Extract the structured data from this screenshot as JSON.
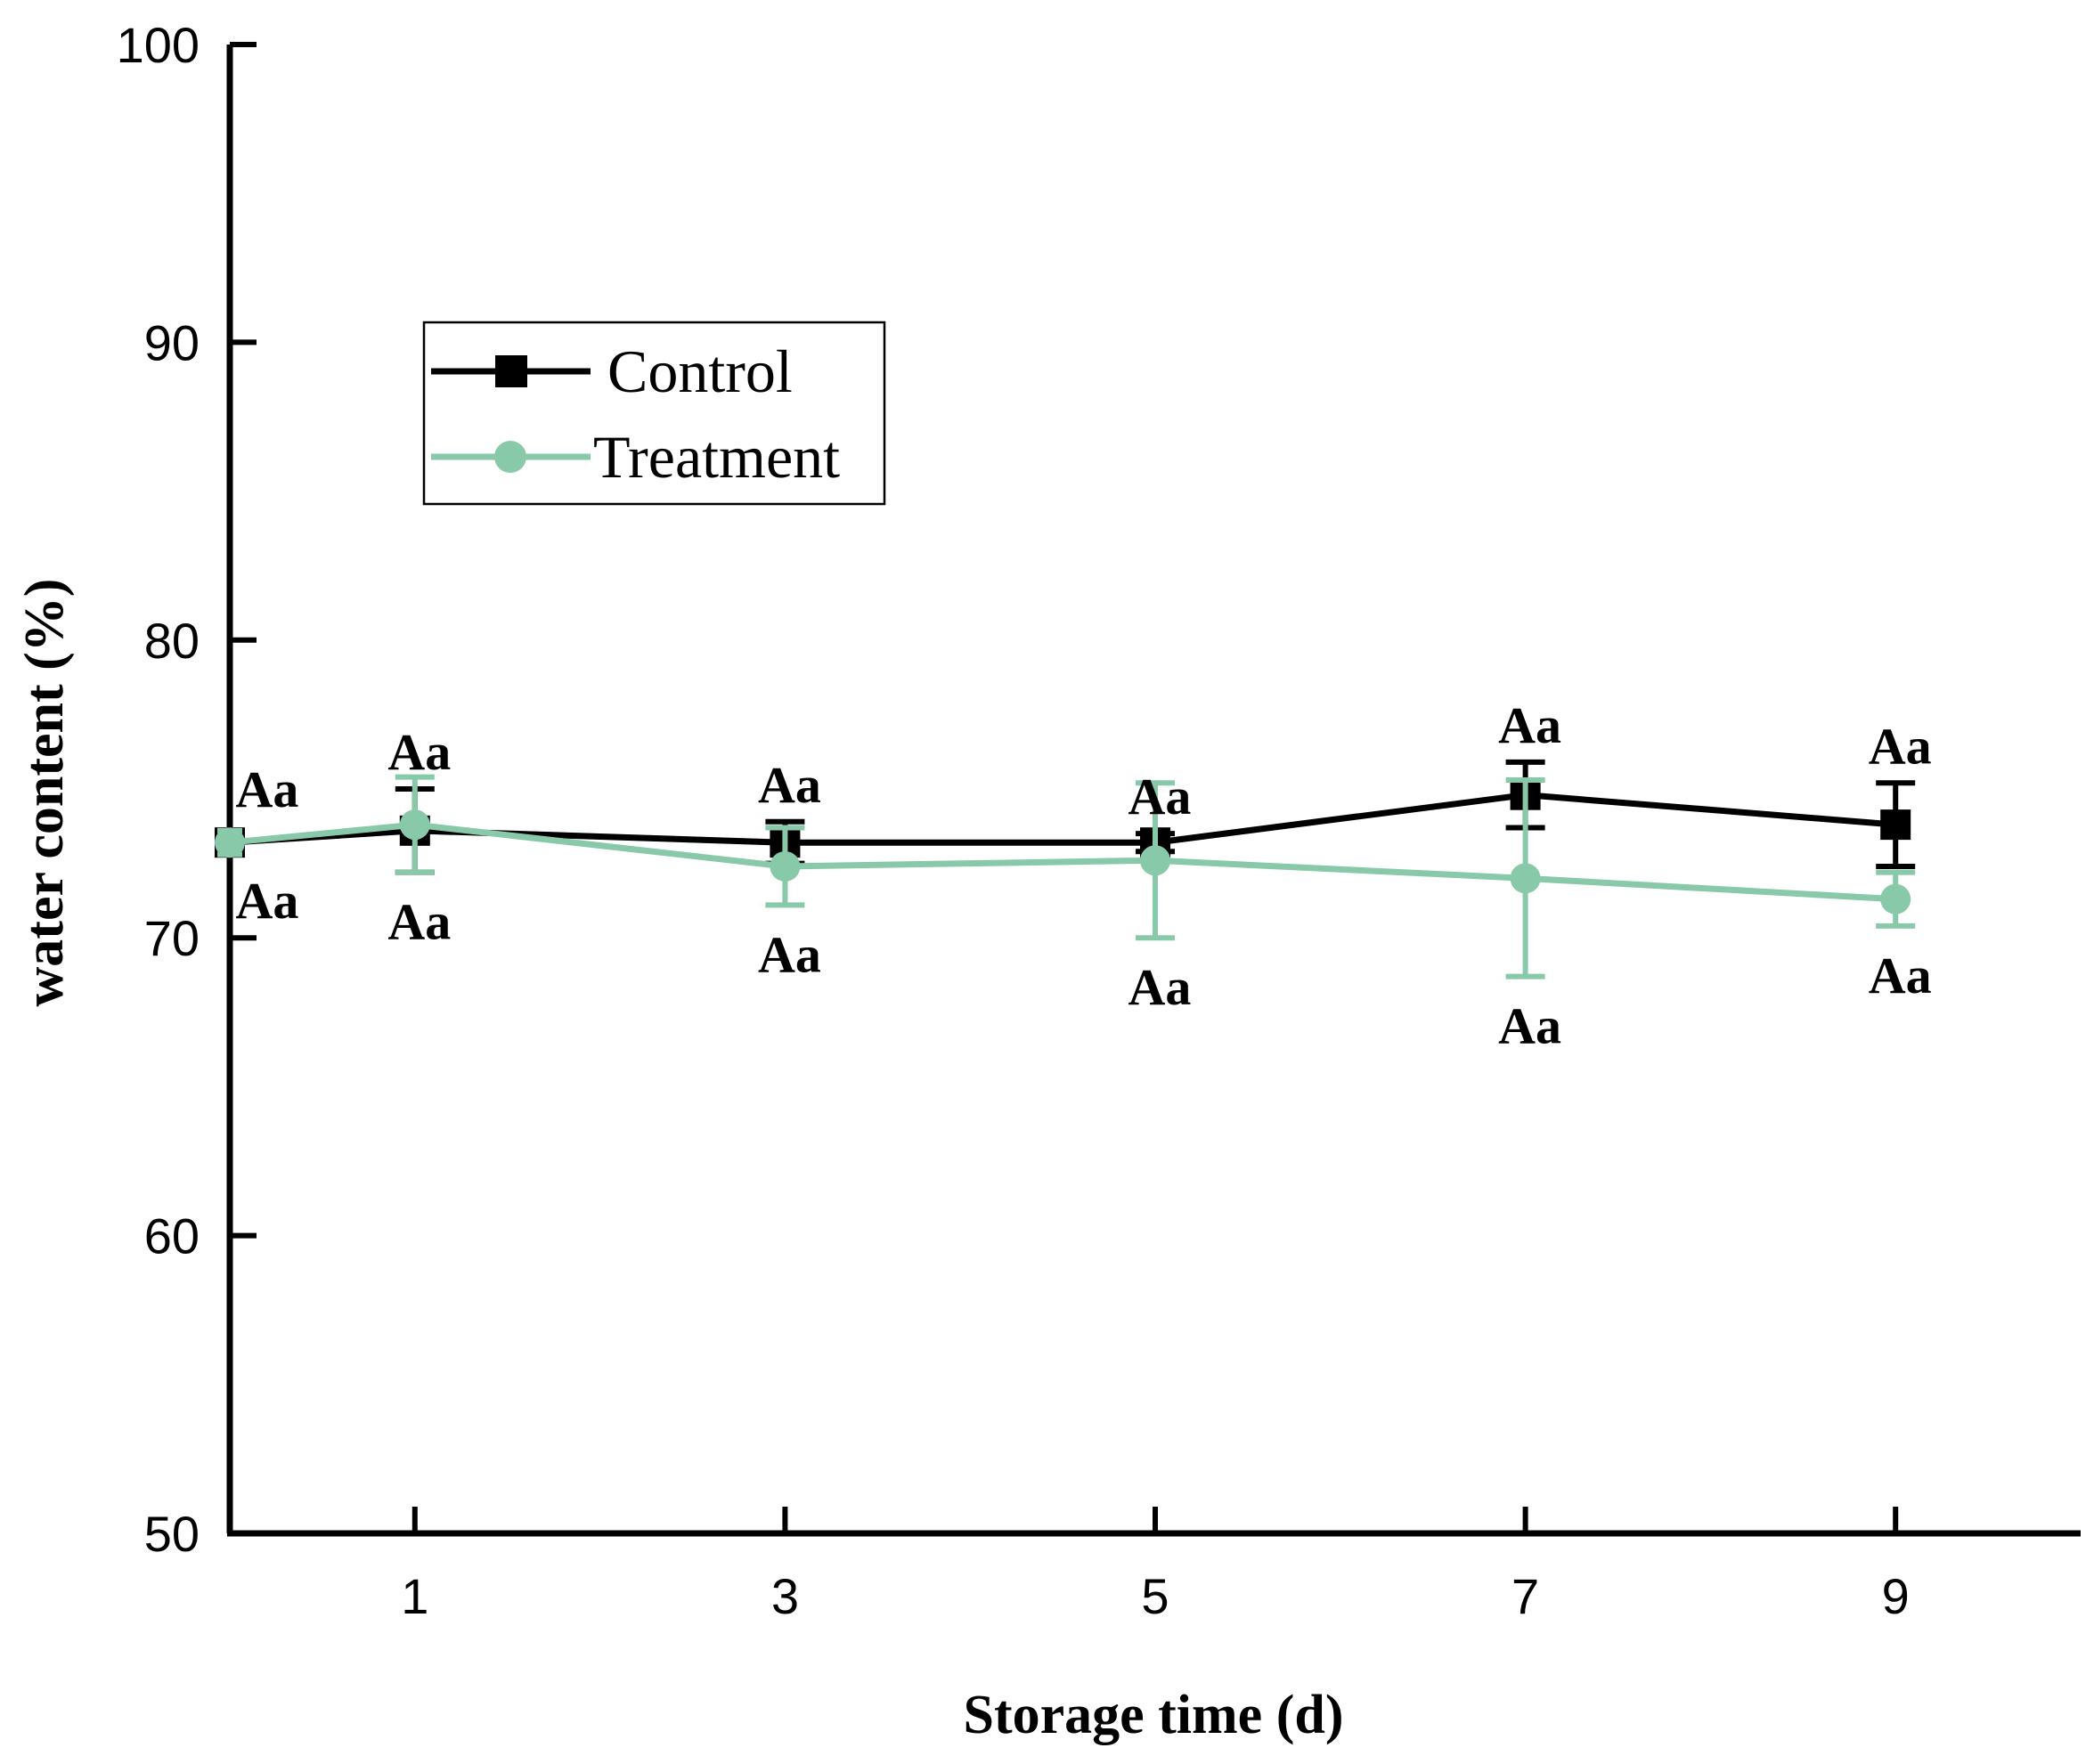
{
  "chart_data": {
    "type": "line",
    "title": "",
    "xlabel": "Storage time (d)",
    "ylabel": "water content (%)",
    "xlim": [
      0,
      10
    ],
    "ylim": [
      50,
      100
    ],
    "xticks": [
      1,
      3,
      5,
      7,
      9
    ],
    "yticks": [
      50,
      60,
      70,
      80,
      90,
      100
    ],
    "legend_position": "top-left",
    "series": [
      {
        "name": "Control",
        "color": "#000000",
        "marker": "square",
        "x": [
          0,
          1,
          3,
          5,
          7,
          9
        ],
        "y": [
          73.2,
          73.6,
          73.2,
          73.2,
          74.8,
          73.8
        ],
        "err": [
          0.3,
          1.4,
          0.7,
          0.3,
          1.1,
          1.4
        ],
        "labels": [
          "Aa",
          "Aa",
          "Aa",
          "Aa",
          "Aa",
          "Aa"
        ]
      },
      {
        "name": "Treatment",
        "color": "#88c9aa",
        "marker": "circle",
        "x": [
          0,
          1,
          3,
          5,
          7,
          9
        ],
        "y": [
          73.2,
          73.8,
          72.4,
          72.6,
          72.0,
          71.3
        ],
        "err": [
          0.4,
          1.6,
          1.3,
          2.6,
          3.3,
          0.9
        ],
        "labels": [
          "Aa",
          "Aa",
          "Aa",
          "Aa",
          "Aa",
          "Aa"
        ]
      }
    ]
  }
}
